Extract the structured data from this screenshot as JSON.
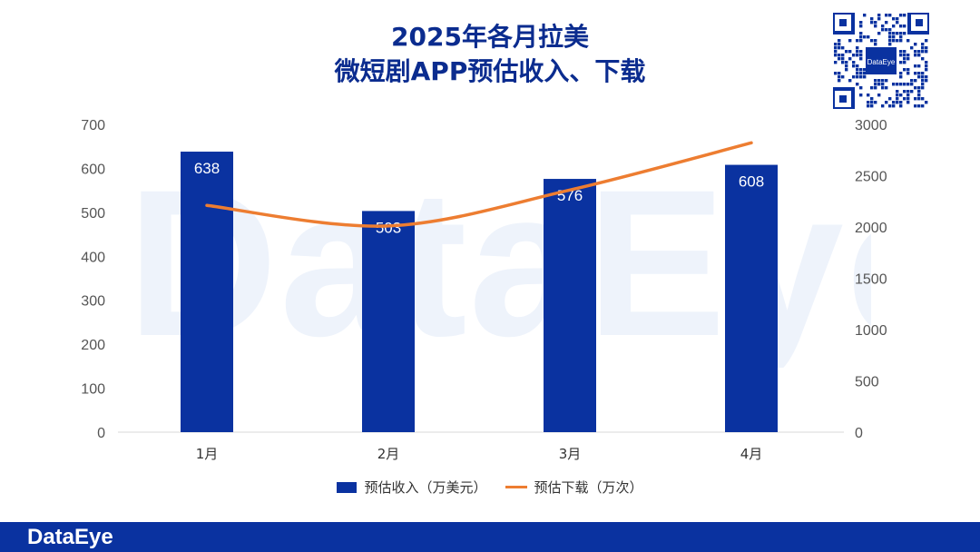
{
  "title_line1": "2025年各月拉美",
  "title_line2": "微短剧APP预估收入、下载",
  "watermark": "DataEye",
  "qr_label": "DataEye",
  "footer_logo": "DataEye",
  "legend": {
    "revenue": "预估收入（万美元）",
    "downloads": "预估下载（万次）"
  },
  "colors": {
    "bar": "#0a32a0",
    "line": "#ed7d31",
    "title": "#0b2c8f",
    "footer": "#0a32a0"
  },
  "chart_data": {
    "type": "bar",
    "categories": [
      "1月",
      "2月",
      "3月",
      "4月"
    ],
    "series": [
      {
        "name": "预估收入（万美元）",
        "type": "bar",
        "axis": "left",
        "values": [
          638,
          503,
          576,
          608
        ]
      },
      {
        "name": "预估下载（万次）",
        "type": "line",
        "axis": "right",
        "values": [
          2210,
          2010,
          2360,
          2820
        ]
      }
    ],
    "y_left": {
      "min": 0,
      "max": 700,
      "ticks": [
        0,
        100,
        200,
        300,
        400,
        500,
        600,
        700
      ]
    },
    "y_right": {
      "min": 0,
      "max": 3000,
      "ticks": [
        0,
        500,
        1000,
        1500,
        2000,
        2500,
        3000
      ]
    },
    "grid": false,
    "legend_position": "bottom"
  }
}
